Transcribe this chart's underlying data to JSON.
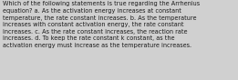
{
  "lines": [
    "Which of the following statements is true regarding the Arrhenius",
    "equation? a. As the activation energy increases at constant",
    "temperature, the rate constant increases. b. As the temperature",
    "increases with constant activation energy, the rate constant",
    "increases. c. As the rate constant increases, the reaction rate",
    "increases. d. To keep the rate constant k constant, as the",
    "activation energy must increase as the temperature increases."
  ],
  "background_color": "#d0d0d0",
  "text_color": "#1a1a1a",
  "font_size": 4.7,
  "fig_width": 2.61,
  "fig_height": 0.88,
  "dpi": 100
}
